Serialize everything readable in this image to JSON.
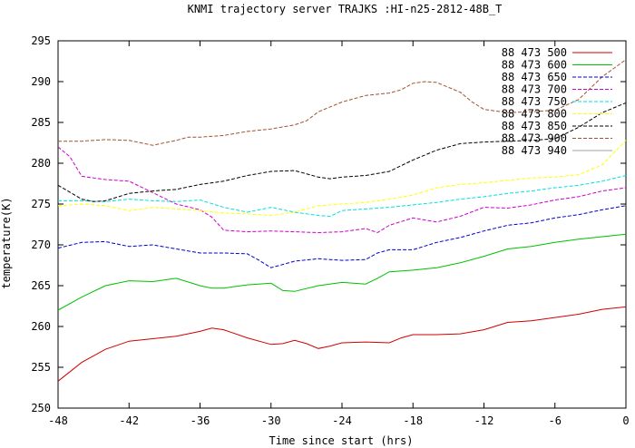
{
  "chart_data": {
    "type": "line",
    "title": "KNMI trajectory server TRAJKS :HI-n25-2812-48B_T",
    "xlabel": "Time since start (hrs)",
    "ylabel": "temperature(K)",
    "xlim": [
      -48,
      0
    ],
    "ylim": [
      250,
      295
    ],
    "xticks": [
      -48,
      -42,
      -36,
      -30,
      -24,
      -18,
      -12,
      -6,
      0
    ],
    "yticks": [
      250,
      255,
      260,
      265,
      270,
      275,
      280,
      285,
      290,
      295
    ],
    "legend_position": "top-right",
    "grid": false,
    "series": [
      {
        "name": "88 473 500",
        "color": "#d00000",
        "dash": "",
        "points": [
          [
            -48,
            253.3
          ],
          [
            -46,
            255.6
          ],
          [
            -44,
            257.2
          ],
          [
            -42,
            258.2
          ],
          [
            -40,
            258.5
          ],
          [
            -38,
            258.8
          ],
          [
            -36,
            259.4
          ],
          [
            -35,
            259.8
          ],
          [
            -34,
            259.6
          ],
          [
            -32,
            258.6
          ],
          [
            -30,
            257.8
          ],
          [
            -29,
            257.9
          ],
          [
            -28,
            258.3
          ],
          [
            -27,
            257.9
          ],
          [
            -26,
            257.3
          ],
          [
            -25,
            257.6
          ],
          [
            -24,
            258.0
          ],
          [
            -22,
            258.1
          ],
          [
            -20,
            258.0
          ],
          [
            -19,
            258.6
          ],
          [
            -18,
            259.0
          ],
          [
            -16,
            259.0
          ],
          [
            -14,
            259.1
          ],
          [
            -12,
            259.6
          ],
          [
            -10,
            260.5
          ],
          [
            -8,
            260.7
          ],
          [
            -6,
            261.1
          ],
          [
            -4,
            261.5
          ],
          [
            -2,
            262.1
          ],
          [
            0,
            262.4
          ]
        ]
      },
      {
        "name": "88 473 600",
        "color": "#00c000",
        "dash": "",
        "points": [
          [
            -48,
            262.0
          ],
          [
            -46,
            263.6
          ],
          [
            -44,
            265.0
          ],
          [
            -42,
            265.6
          ],
          [
            -40,
            265.5
          ],
          [
            -38,
            265.9
          ],
          [
            -36,
            265.0
          ],
          [
            -35,
            264.7
          ],
          [
            -34,
            264.7
          ],
          [
            -32,
            265.1
          ],
          [
            -30,
            265.3
          ],
          [
            -29,
            264.4
          ],
          [
            -28,
            264.3
          ],
          [
            -26,
            265.0
          ],
          [
            -24,
            265.4
          ],
          [
            -22,
            265.2
          ],
          [
            -21,
            265.9
          ],
          [
            -20,
            266.7
          ],
          [
            -18,
            266.9
          ],
          [
            -16,
            267.2
          ],
          [
            -14,
            267.8
          ],
          [
            -12,
            268.6
          ],
          [
            -10,
            269.5
          ],
          [
            -8,
            269.8
          ],
          [
            -6,
            270.3
          ],
          [
            -4,
            270.7
          ],
          [
            -2,
            271.0
          ],
          [
            0,
            271.3
          ]
        ]
      },
      {
        "name": "88 473 650",
        "color": "#0000cc",
        "dash": "4,2",
        "points": [
          [
            -48,
            269.6
          ],
          [
            -46,
            270.3
          ],
          [
            -44,
            270.4
          ],
          [
            -42,
            269.8
          ],
          [
            -40,
            270.0
          ],
          [
            -38,
            269.5
          ],
          [
            -36,
            269.0
          ],
          [
            -34,
            269.0
          ],
          [
            -32,
            268.9
          ],
          [
            -31,
            268.1
          ],
          [
            -30,
            267.2
          ],
          [
            -29,
            267.6
          ],
          [
            -28,
            268.0
          ],
          [
            -26,
            268.3
          ],
          [
            -24,
            268.1
          ],
          [
            -22,
            268.2
          ],
          [
            -21,
            269.0
          ],
          [
            -20,
            269.4
          ],
          [
            -18,
            269.4
          ],
          [
            -16,
            270.3
          ],
          [
            -14,
            270.9
          ],
          [
            -12,
            271.7
          ],
          [
            -10,
            272.4
          ],
          [
            -8,
            272.7
          ],
          [
            -6,
            273.3
          ],
          [
            -4,
            273.7
          ],
          [
            -2,
            274.3
          ],
          [
            0,
            274.8
          ]
        ]
      },
      {
        "name": "88 473 700",
        "color": "#cc00cc",
        "dash": "4,2",
        "points": [
          [
            -48,
            282.0
          ],
          [
            -47,
            280.8
          ],
          [
            -46,
            278.4
          ],
          [
            -44,
            278.0
          ],
          [
            -42,
            277.8
          ],
          [
            -40,
            276.4
          ],
          [
            -38,
            275.0
          ],
          [
            -36,
            274.3
          ],
          [
            -35,
            273.4
          ],
          [
            -34,
            271.8
          ],
          [
            -32,
            271.6
          ],
          [
            -30,
            271.7
          ],
          [
            -28,
            271.6
          ],
          [
            -26,
            271.5
          ],
          [
            -24,
            271.6
          ],
          [
            -22,
            272.0
          ],
          [
            -21,
            271.5
          ],
          [
            -20,
            272.4
          ],
          [
            -18,
            273.3
          ],
          [
            -16,
            272.8
          ],
          [
            -14,
            273.5
          ],
          [
            -12,
            274.6
          ],
          [
            -10,
            274.5
          ],
          [
            -8,
            274.9
          ],
          [
            -6,
            275.5
          ],
          [
            -4,
            275.9
          ],
          [
            -2,
            276.6
          ],
          [
            0,
            277.0
          ]
        ]
      },
      {
        "name": "88 473 750",
        "color": "#00e0e0",
        "dash": "4,2",
        "points": [
          [
            -48,
            275.4
          ],
          [
            -46,
            275.4
          ],
          [
            -44,
            275.3
          ],
          [
            -42,
            275.6
          ],
          [
            -40,
            275.4
          ],
          [
            -38,
            275.3
          ],
          [
            -36,
            275.5
          ],
          [
            -34,
            274.6
          ],
          [
            -32,
            274.0
          ],
          [
            -30,
            274.6
          ],
          [
            -28,
            274.0
          ],
          [
            -26,
            273.6
          ],
          [
            -25,
            273.5
          ],
          [
            -24,
            274.2
          ],
          [
            -22,
            274.4
          ],
          [
            -20,
            274.6
          ],
          [
            -18,
            274.9
          ],
          [
            -16,
            275.2
          ],
          [
            -14,
            275.6
          ],
          [
            -12,
            275.9
          ],
          [
            -10,
            276.3
          ],
          [
            -8,
            276.6
          ],
          [
            -6,
            277.0
          ],
          [
            -4,
            277.3
          ],
          [
            -2,
            277.8
          ],
          [
            0,
            278.5
          ]
        ]
      },
      {
        "name": "88 473 800",
        "color": "#ffff00",
        "dash": "4,2",
        "points": [
          [
            -48,
            274.8
          ],
          [
            -46,
            275.0
          ],
          [
            -44,
            274.8
          ],
          [
            -42,
            274.2
          ],
          [
            -40,
            274.6
          ],
          [
            -38,
            274.4
          ],
          [
            -36,
            274.2
          ],
          [
            -34,
            273.9
          ],
          [
            -32,
            273.8
          ],
          [
            -30,
            273.6
          ],
          [
            -28,
            274.0
          ],
          [
            -26,
            274.8
          ],
          [
            -24,
            275.0
          ],
          [
            -22,
            275.2
          ],
          [
            -20,
            275.6
          ],
          [
            -18,
            276.1
          ],
          [
            -16,
            277.0
          ],
          [
            -14,
            277.4
          ],
          [
            -12,
            277.6
          ],
          [
            -10,
            277.9
          ],
          [
            -8,
            278.2
          ],
          [
            -6,
            278.3
          ],
          [
            -4,
            278.6
          ],
          [
            -2,
            279.8
          ],
          [
            0,
            282.8
          ]
        ]
      },
      {
        "name": "88 473 850",
        "color": "#000000",
        "dash": "4,2",
        "points": [
          [
            -48,
            277.3
          ],
          [
            -46,
            275.6
          ],
          [
            -45,
            275.3
          ],
          [
            -44,
            275.4
          ],
          [
            -42,
            276.3
          ],
          [
            -40,
            276.6
          ],
          [
            -38,
            276.8
          ],
          [
            -36,
            277.4
          ],
          [
            -34,
            277.8
          ],
          [
            -32,
            278.5
          ],
          [
            -30,
            279.0
          ],
          [
            -28,
            279.1
          ],
          [
            -26,
            278.3
          ],
          [
            -25,
            278.1
          ],
          [
            -24,
            278.3
          ],
          [
            -22,
            278.5
          ],
          [
            -20,
            279.0
          ],
          [
            -18,
            280.4
          ],
          [
            -16,
            281.6
          ],
          [
            -14,
            282.4
          ],
          [
            -12,
            282.6
          ],
          [
            -10,
            282.7
          ],
          [
            -8,
            282.8
          ],
          [
            -6,
            283.0
          ],
          [
            -4,
            284.4
          ],
          [
            -2,
            286.2
          ],
          [
            0,
            287.4
          ]
        ]
      },
      {
        "name": "88 473 900",
        "color": "#a0522d",
        "dash": "4,2",
        "points": [
          [
            -48,
            282.7
          ],
          [
            -46,
            282.7
          ],
          [
            -44,
            282.9
          ],
          [
            -42,
            282.8
          ],
          [
            -40,
            282.2
          ],
          [
            -38,
            282.8
          ],
          [
            -37,
            283.2
          ],
          [
            -36,
            283.2
          ],
          [
            -34,
            283.4
          ],
          [
            -32,
            283.9
          ],
          [
            -30,
            284.2
          ],
          [
            -28,
            284.7
          ],
          [
            -27,
            285.2
          ],
          [
            -26,
            286.3
          ],
          [
            -24,
            287.5
          ],
          [
            -22,
            288.3
          ],
          [
            -20,
            288.6
          ],
          [
            -19,
            289.0
          ],
          [
            -18,
            289.8
          ],
          [
            -17,
            290.0
          ],
          [
            -16,
            289.9
          ],
          [
            -14,
            288.7
          ],
          [
            -13,
            287.5
          ],
          [
            -12,
            286.6
          ],
          [
            -10,
            286.2
          ],
          [
            -8,
            286.3
          ],
          [
            -6,
            286.5
          ],
          [
            -4,
            287.8
          ],
          [
            -2,
            290.6
          ],
          [
            0,
            292.7
          ]
        ]
      },
      {
        "name": "88 473 940",
        "color": "#a0a0a0",
        "dash": "",
        "points": []
      }
    ]
  }
}
